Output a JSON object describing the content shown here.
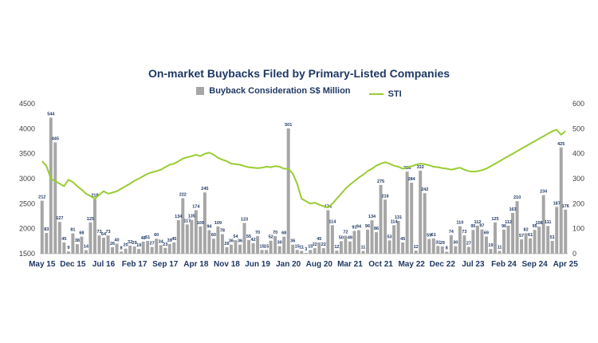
{
  "chart_data": {
    "type": "bar",
    "title": "On-market Buybacks Filed by Primary-Listed Companies",
    "legend": [
      "Buyback Consideration S$ Million",
      "STI"
    ],
    "legend_position": "top-center",
    "xlabel": "",
    "ylabel": "",
    "ylim_left": [
      1500,
      4500
    ],
    "ylim_right": [
      0,
      600
    ],
    "left_ticks": [
      "1500",
      "2000",
      "2500",
      "3000",
      "3500",
      "4000",
      "4500"
    ],
    "right_ticks": [
      "0",
      "100",
      "200",
      "300",
      "400",
      "500",
      "600"
    ],
    "x_tick_labels": [
      "May 15",
      "Dec 15",
      "Jul 16",
      "Feb 17",
      "Sep 17",
      "Apr 18",
      "Nov 18",
      "Jun 19",
      "Jan 20",
      "Aug 20",
      "Mar 21",
      "Oct 21",
      "May 22",
      "Dec 22",
      "Jul 23",
      "Feb 24",
      "Sep 24",
      "Apr 25"
    ],
    "x_tick_positions": [
      0,
      7,
      14,
      21,
      28,
      35,
      42,
      49,
      56,
      63,
      70,
      77,
      84,
      91,
      98,
      105,
      112,
      119
    ],
    "grid": false,
    "series": [
      {
        "name": "Buyback Consideration S$ Million",
        "axis": "right",
        "type": "bar",
        "color": "#a6a6a6",
        "values": [
          212,
          83,
          544,
          445,
          127,
          45,
          9,
          81,
          38,
          68,
          14,
          125,
          218,
          73,
          64,
          73,
          26,
          40,
          8,
          20,
          32,
          29,
          19,
          48,
          51,
          27,
          60,
          34,
          23,
          39,
          45,
          134,
          222,
          117,
          135,
          174,
          109,
          245,
          94,
          60,
          109,
          78,
          26,
          36,
          54,
          36,
          123,
          55,
          42,
          70,
          15,
          15,
          52,
          70,
          30,
          68,
          501,
          36,
          15,
          11,
          3,
          15,
          22,
          45,
          22,
          174,
          114,
          12,
          50,
          72,
          49,
          91,
          94,
          11,
          96,
          134,
          86,
          275,
          216,
          53,
          114,
          131,
          45,
          328,
          284,
          12,
          332,
          242,
          59,
          61,
          31,
          29,
          8,
          74,
          30,
          110,
          73,
          27,
          95,
          112,
          97,
          69,
          19,
          125,
          11,
          96,
          112,
          163,
          210,
          57,
          82,
          61,
          95,
          108,
          234,
          111,
          51,
          187,
          425,
          176
        ]
      },
      {
        "name": "STI",
        "axis": "left",
        "type": "line",
        "color": "#99cc33",
        "values": [
          3350,
          3250,
          3000,
          2950,
          2900,
          2850,
          2980,
          2930,
          2850,
          2780,
          2700,
          2650,
          2600,
          2680,
          2750,
          2700,
          2720,
          2750,
          2800,
          2850,
          2900,
          2960,
          3000,
          3050,
          3100,
          3130,
          3150,
          3180,
          3230,
          3280,
          3300,
          3350,
          3400,
          3430,
          3450,
          3480,
          3450,
          3500,
          3520,
          3480,
          3420,
          3380,
          3350,
          3300,
          3290,
          3280,
          3250,
          3230,
          3220,
          3210,
          3220,
          3240,
          3230,
          3250,
          3240,
          3200,
          3200,
          3100,
          2900,
          2600,
          2550,
          2500,
          2520,
          2480,
          2450,
          2420,
          2500,
          2600,
          2700,
          2800,
          2880,
          2950,
          3020,
          3080,
          3150,
          3200,
          3260,
          3300,
          3330,
          3300,
          3260,
          3240,
          3200,
          3230,
          3250,
          3280,
          3300,
          3290,
          3270,
          3240,
          3230,
          3210,
          3200,
          3180,
          3200,
          3220,
          3180,
          3150,
          3140,
          3150,
          3170,
          3200,
          3250,
          3300,
          3350,
          3400,
          3450,
          3500,
          3550,
          3600,
          3650,
          3700,
          3750,
          3800,
          3850,
          3900,
          3950,
          3980,
          3880,
          3950
        ]
      }
    ],
    "data_labels": [
      "212",
      "83",
      "544",
      "445",
      "127",
      "45",
      "9",
      "81",
      "38",
      "68",
      "14",
      "125",
      "218",
      "73",
      "64",
      "73",
      "26",
      "40",
      "8",
      "20",
      "32",
      "29",
      "19",
      "48",
      "51",
      "27",
      "60",
      "34",
      "23",
      "39",
      "45",
      "134",
      "222",
      "117",
      "135",
      "174",
      "109",
      "245",
      "94",
      "60",
      "109",
      "78",
      "26",
      "36",
      "54",
      "36",
      "123",
      "55",
      "42",
      "70",
      "15",
      "15",
      "52",
      "70",
      "30",
      "68",
      "501",
      "36",
      "15",
      "11",
      "3",
      "15",
      "22",
      "45",
      "22",
      "174",
      "114",
      "12",
      "50",
      "72",
      "49",
      "91",
      "94",
      "11",
      "96",
      "134",
      "86",
      "275",
      "216",
      "53",
      "114",
      "131",
      "45",
      "328",
      "284",
      "12",
      "332",
      "242",
      "59",
      "61",
      "31",
      "29",
      "8",
      "74",
      "30",
      "110",
      "73",
      "27",
      "95",
      "112",
      "97",
      "69",
      "19",
      "125",
      "11",
      "96",
      "112",
      "163",
      "210",
      "57",
      "82",
      "61",
      "95",
      "108",
      "234",
      "111",
      "51",
      "187",
      "425",
      "176"
    ]
  }
}
